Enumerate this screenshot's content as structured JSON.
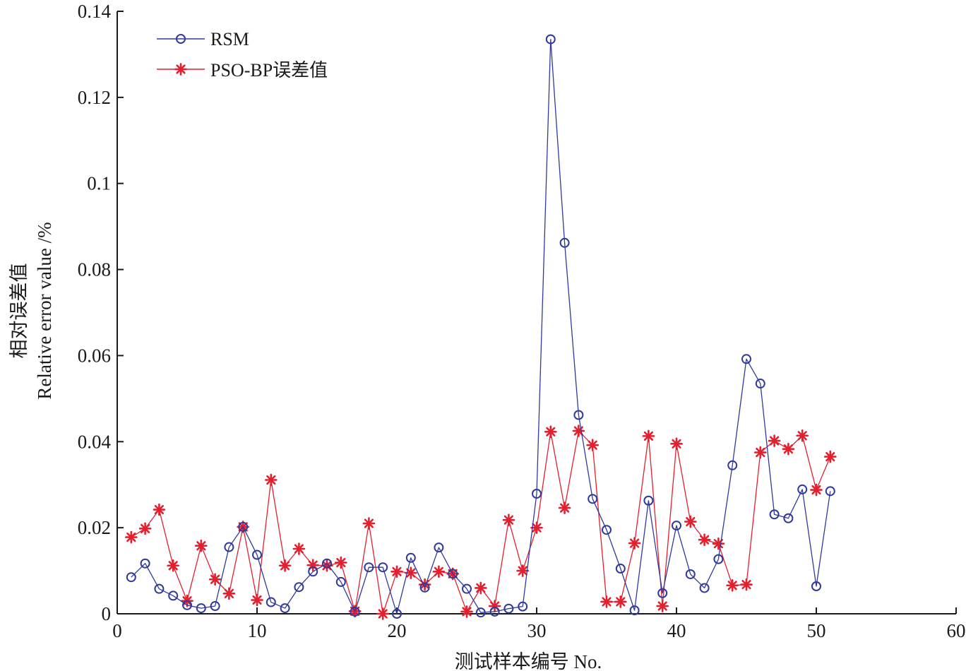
{
  "chart_data": {
    "type": "line",
    "xlabel": "测试样本编号 No.",
    "ylabel_zh": "相对误差值",
    "ylabel_en": "Relative error value /%",
    "xlim": [
      0,
      60
    ],
    "ylim": [
      0,
      0.14
    ],
    "xticks": [
      0,
      10,
      20,
      30,
      40,
      50,
      60
    ],
    "yticks": [
      0,
      0.02,
      0.04,
      0.06,
      0.08,
      0.1,
      0.12,
      0.14
    ],
    "ytick_labels": [
      "0",
      "0.02",
      "0.04",
      "0.06",
      "0.08",
      "0.1",
      "0.12",
      "0.14"
    ],
    "grid": false,
    "legend_position": "top-left",
    "x": [
      1,
      2,
      3,
      4,
      5,
      6,
      7,
      8,
      9,
      10,
      11,
      12,
      13,
      14,
      15,
      16,
      17,
      18,
      19,
      20,
      21,
      22,
      23,
      24,
      25,
      26,
      27,
      28,
      29,
      30,
      31,
      32,
      33,
      34,
      35,
      36,
      37,
      38,
      39,
      40,
      41,
      42,
      43,
      44,
      45,
      46,
      47,
      48,
      49,
      50,
      51
    ],
    "series": [
      {
        "name": "RSM",
        "color": "#2f3a9c",
        "marker": "circle",
        "values": [
          0.0085,
          0.0117,
          0.0058,
          0.0042,
          0.002,
          0.0013,
          0.0018,
          0.0155,
          0.0202,
          0.0137,
          0.0027,
          0.0013,
          0.0062,
          0.0098,
          0.0117,
          0.0074,
          0.0005,
          0.0108,
          0.0108,
          0.0,
          0.013,
          0.0061,
          0.0154,
          0.0093,
          0.0058,
          0.0003,
          0.0005,
          0.0012,
          0.0017,
          0.0279,
          0.1335,
          0.0862,
          0.0462,
          0.0267,
          0.0195,
          0.0105,
          0.0008,
          0.0263,
          0.0048,
          0.0205,
          0.0092,
          0.006,
          0.0127,
          0.0345,
          0.0592,
          0.0535,
          0.0231,
          0.0222,
          0.0289,
          0.0064,
          0.0285
        ]
      },
      {
        "name": "PSO-BP误差值",
        "color": "#e2202f",
        "marker": "star",
        "values": [
          0.0178,
          0.0198,
          0.0242,
          0.0112,
          0.003,
          0.0158,
          0.008,
          0.0047,
          0.0202,
          0.0032,
          0.0311,
          0.0112,
          0.0151,
          0.0113,
          0.0112,
          0.0119,
          0.0006,
          0.021,
          0.0,
          0.0098,
          0.0095,
          0.0068,
          0.0098,
          0.0093,
          0.0005,
          0.006,
          0.0018,
          0.0218,
          0.01,
          0.02,
          0.0423,
          0.0246,
          0.0425,
          0.0392,
          0.0028,
          0.0028,
          0.0164,
          0.0413,
          0.0018,
          0.0395,
          0.0214,
          0.0172,
          0.0163,
          0.0066,
          0.0068,
          0.0375,
          0.0402,
          0.0383,
          0.0414,
          0.0288,
          0.0365
        ]
      }
    ]
  }
}
